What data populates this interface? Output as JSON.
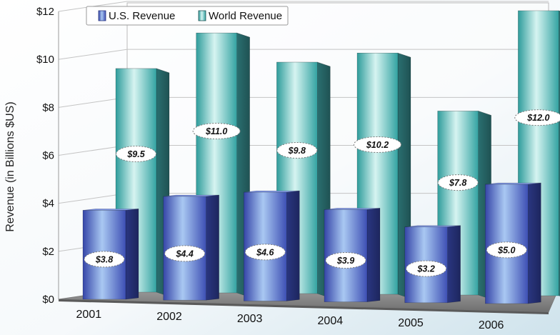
{
  "chart_data": {
    "type": "bar",
    "title": "",
    "xlabel": "",
    "ylabel": "Revenue (in Billions $US)",
    "ylim": [
      0,
      12
    ],
    "y_ticks": [
      "$0",
      "$2",
      "$4",
      "$6",
      "$8",
      "$10",
      "$12"
    ],
    "categories": [
      "2001",
      "2002",
      "2003",
      "2004",
      "2005",
      "2006"
    ],
    "series": [
      {
        "name": "U.S. Revenue",
        "values": [
          3.8,
          4.4,
          4.6,
          3.9,
          3.2,
          5.0
        ],
        "labels": [
          "$3.8",
          "$4.4",
          "$4.6",
          "$3.9",
          "$3.2",
          "$5.0"
        ]
      },
      {
        "name": "World Revenue",
        "values": [
          9.5,
          11.0,
          9.8,
          10.2,
          7.8,
          12.0
        ],
        "labels": [
          "$9.5",
          "$11.0",
          "$9.8",
          "$10.2",
          "$7.8",
          "$12.0"
        ]
      }
    ],
    "grid": true,
    "legend_position": "top-left",
    "colors": {
      "us": "#4a63c8",
      "world": "#3fb3b0"
    }
  }
}
